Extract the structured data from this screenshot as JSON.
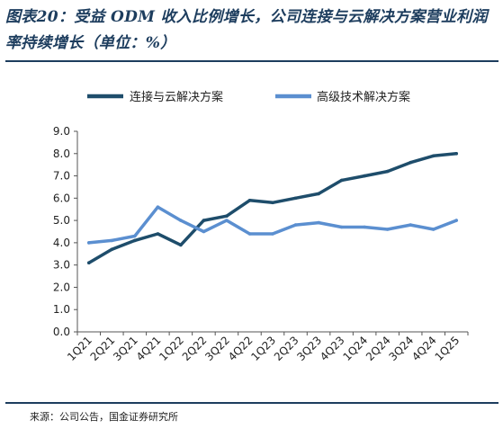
{
  "title": "图表20：受益 ODM 收入比例增长，公司连接与云解决方案营业利润率持续增长（单位：%）",
  "source": "来源：公司公告，国金证券研究所",
  "colors": {
    "series1": "#1e4d6b",
    "series2": "#5b8fd0",
    "rule": "#1d3d5e"
  },
  "chart_data": {
    "type": "line",
    "title": "图表20：受益 ODM 收入比例增长，公司连接与云解决方案营业利润率持续增长（单位：%）",
    "xlabel": "",
    "ylabel": "",
    "categories": [
      "1Q21",
      "2Q21",
      "3Q21",
      "4Q21",
      "1Q22",
      "2Q22",
      "3Q22",
      "4Q22",
      "1Q23",
      "2Q23",
      "3Q23",
      "4Q23",
      "1Q24",
      "2Q24",
      "3Q24",
      "4Q24",
      "1Q25"
    ],
    "series": [
      {
        "name": "连接与云解决方案",
        "values": [
          3.1,
          3.7,
          4.1,
          4.4,
          3.9,
          5.0,
          5.2,
          5.9,
          5.8,
          6.0,
          6.2,
          6.8,
          7.0,
          7.2,
          7.6,
          7.9,
          8.0
        ]
      },
      {
        "name": "高级技术解决方案",
        "values": [
          4.0,
          4.1,
          4.3,
          5.6,
          5.0,
          4.5,
          5.0,
          4.4,
          4.4,
          4.8,
          4.9,
          4.7,
          4.7,
          4.6,
          4.8,
          4.6,
          5.0
        ]
      }
    ],
    "ylim": [
      0,
      9
    ],
    "yticks": [
      "0.0",
      "1.0",
      "2.0",
      "3.0",
      "4.0",
      "5.0",
      "6.0",
      "7.0",
      "8.0",
      "9.0"
    ],
    "grid": false,
    "legend": "top"
  }
}
